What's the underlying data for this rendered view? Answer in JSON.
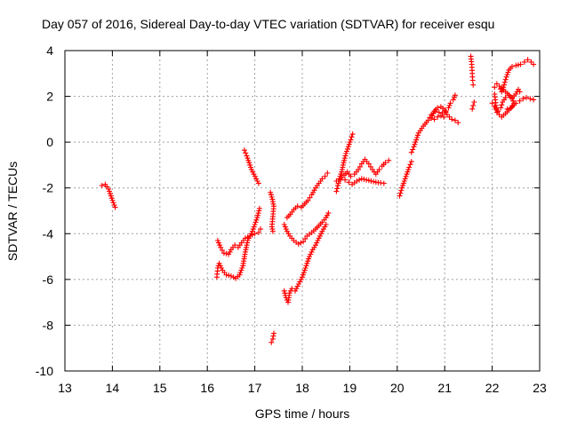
{
  "chart_data": {
    "type": "scatter",
    "title": "Day 057 of 2016, Sidereal Day-to-day VTEC variation (SDTVAR) for receiver esqu",
    "xlabel": "GPS time / hours",
    "ylabel": "SDTVAR / TECUs",
    "xlim": [
      13,
      23
    ],
    "ylim": [
      -10,
      4
    ],
    "x_ticks": [
      "13",
      "14",
      "15",
      "16",
      "17",
      "18",
      "19",
      "20",
      "21",
      "22",
      "23"
    ],
    "y_ticks": [
      "4",
      "2",
      "0",
      "-2",
      "-4",
      "-6",
      "-8",
      "-10"
    ],
    "grid": true,
    "marker": "plus",
    "color": "#ff0000",
    "segments": [
      [
        [
          13.78,
          -1.9
        ],
        [
          13.85,
          -1.85
        ],
        [
          13.92,
          -2.05
        ],
        [
          13.97,
          -2.35
        ],
        [
          14.02,
          -2.65
        ],
        [
          14.06,
          -2.85
        ]
      ],
      [
        [
          16.2,
          -5.9
        ],
        [
          16.22,
          -5.5
        ],
        [
          16.25,
          -5.3
        ],
        [
          16.32,
          -5.6
        ],
        [
          16.4,
          -5.8
        ],
        [
          16.5,
          -5.85
        ],
        [
          16.6,
          -5.95
        ],
        [
          16.68,
          -5.8
        ],
        [
          16.75,
          -5.4
        ],
        [
          16.8,
          -4.8
        ],
        [
          16.85,
          -4.3
        ],
        [
          16.95,
          -3.9
        ],
        [
          17.05,
          -3.3
        ],
        [
          17.1,
          -2.9
        ]
      ],
      [
        [
          16.22,
          -4.3
        ],
        [
          16.28,
          -4.6
        ],
        [
          16.35,
          -4.85
        ],
        [
          16.45,
          -4.9
        ],
        [
          16.5,
          -4.7
        ],
        [
          16.58,
          -4.5
        ],
        [
          16.65,
          -4.6
        ],
        [
          16.72,
          -4.4
        ],
        [
          16.8,
          -4.2
        ],
        [
          16.9,
          -4.1
        ],
        [
          17.0,
          -4.0
        ],
        [
          17.08,
          -3.95
        ],
        [
          17.12,
          -3.8
        ]
      ],
      [
        [
          16.78,
          -0.35
        ],
        [
          16.83,
          -0.6
        ],
        [
          16.88,
          -0.9
        ],
        [
          16.93,
          -1.2
        ],
        [
          16.98,
          -1.4
        ],
        [
          17.03,
          -1.6
        ],
        [
          17.08,
          -1.8
        ]
      ],
      [
        [
          17.33,
          -2.2
        ],
        [
          17.37,
          -2.5
        ],
        [
          17.4,
          -2.8
        ],
        [
          17.36,
          -3.7
        ],
        [
          17.38,
          -3.9
        ]
      ],
      [
        [
          17.35,
          -8.75
        ],
        [
          17.38,
          -8.6
        ],
        [
          17.4,
          -8.35
        ]
      ],
      [
        [
          17.62,
          -3.6
        ],
        [
          17.68,
          -3.9
        ],
        [
          17.74,
          -4.1
        ],
        [
          17.82,
          -4.3
        ],
        [
          17.92,
          -4.45
        ],
        [
          18.02,
          -4.35
        ],
        [
          18.1,
          -4.1
        ],
        [
          18.2,
          -3.95
        ],
        [
          18.28,
          -3.8
        ],
        [
          18.35,
          -3.65
        ],
        [
          18.42,
          -3.5
        ],
        [
          18.5,
          -3.3
        ],
        [
          18.55,
          -3.1
        ]
      ],
      [
        [
          17.62,
          -6.5
        ],
        [
          17.66,
          -6.8
        ],
        [
          17.7,
          -7.0
        ],
        [
          17.73,
          -6.6
        ],
        [
          17.78,
          -6.4
        ],
        [
          17.85,
          -6.5
        ],
        [
          17.9,
          -6.3
        ],
        [
          17.95,
          -6.1
        ],
        [
          18.0,
          -5.9
        ],
        [
          18.05,
          -5.6
        ],
        [
          18.1,
          -5.3
        ],
        [
          18.15,
          -5.0
        ],
        [
          18.22,
          -4.7
        ],
        [
          18.28,
          -4.5
        ],
        [
          18.35,
          -4.2
        ],
        [
          18.42,
          -3.9
        ],
        [
          18.5,
          -3.6
        ]
      ],
      [
        [
          17.68,
          -3.3
        ],
        [
          17.75,
          -3.15
        ],
        [
          17.82,
          -2.95
        ],
        [
          17.9,
          -2.8
        ],
        [
          17.98,
          -2.85
        ],
        [
          18.05,
          -2.7
        ],
        [
          18.12,
          -2.55
        ],
        [
          18.2,
          -2.3
        ],
        [
          18.28,
          -2.0
        ],
        [
          18.35,
          -1.8
        ],
        [
          18.42,
          -1.6
        ],
        [
          18.48,
          -1.5
        ],
        [
          18.53,
          -1.35
        ]
      ],
      [
        [
          18.72,
          -2.15
        ],
        [
          18.75,
          -1.9
        ],
        [
          18.78,
          -1.6
        ],
        [
          18.83,
          -1.3
        ],
        [
          18.87,
          -0.9
        ],
        [
          18.92,
          -0.5
        ],
        [
          18.97,
          -0.2
        ],
        [
          19.02,
          0.1
        ],
        [
          19.06,
          0.35
        ]
      ],
      [
        [
          18.72,
          -1.7
        ],
        [
          18.8,
          -1.65
        ],
        [
          18.88,
          -1.45
        ],
        [
          18.95,
          -1.3
        ],
        [
          19.02,
          -1.5
        ],
        [
          19.1,
          -1.4
        ],
        [
          19.18,
          -1.2
        ],
        [
          19.25,
          -0.95
        ],
        [
          19.32,
          -0.75
        ],
        [
          19.4,
          -0.95
        ],
        [
          19.48,
          -1.2
        ],
        [
          19.55,
          -1.4
        ],
        [
          19.62,
          -1.2
        ],
        [
          19.68,
          -1.05
        ],
        [
          19.75,
          -0.9
        ],
        [
          19.82,
          -0.8
        ]
      ],
      [
        [
          18.9,
          -1.65
        ],
        [
          18.98,
          -1.75
        ],
        [
          19.05,
          -1.85
        ],
        [
          19.15,
          -1.7
        ],
        [
          19.25,
          -1.6
        ],
        [
          19.35,
          -1.65
        ],
        [
          19.45,
          -1.7
        ],
        [
          19.55,
          -1.75
        ],
        [
          19.65,
          -1.78
        ],
        [
          19.72,
          -1.8
        ]
      ],
      [
        [
          20.05,
          -2.35
        ],
        [
          20.1,
          -2.0
        ],
        [
          20.15,
          -1.7
        ],
        [
          20.2,
          -1.4
        ],
        [
          20.25,
          -1.1
        ],
        [
          20.3,
          -0.85
        ]
      ],
      [
        [
          20.3,
          -0.45
        ],
        [
          20.35,
          -0.2
        ],
        [
          20.4,
          0.1
        ],
        [
          20.45,
          0.4
        ],
        [
          20.55,
          0.7
        ],
        [
          20.65,
          0.95
        ],
        [
          20.72,
          1.2
        ],
        [
          20.8,
          1.35
        ],
        [
          20.88,
          1.3
        ],
        [
          20.95,
          1.25
        ],
        [
          21.02,
          1.35
        ],
        [
          21.08,
          1.5
        ],
        [
          21.12,
          1.7
        ],
        [
          21.18,
          1.85
        ],
        [
          21.22,
          2.05
        ]
      ],
      [
        [
          20.72,
          1.05
        ],
        [
          20.78,
          1.35
        ],
        [
          20.85,
          1.5
        ],
        [
          20.92,
          1.55
        ],
        [
          21.0,
          1.4
        ],
        [
          21.05,
          1.2
        ],
        [
          21.1,
          1.1
        ],
        [
          21.15,
          1.0
        ],
        [
          21.22,
          0.95
        ],
        [
          21.28,
          0.85
        ]
      ],
      [
        [
          20.78,
          1.0
        ],
        [
          20.85,
          1.1
        ],
        [
          20.92,
          1.15
        ],
        [
          20.98,
          1.1
        ]
      ],
      [
        [
          21.55,
          3.75
        ],
        [
          21.57,
          3.4
        ],
        [
          21.58,
          3.0
        ],
        [
          21.59,
          2.7
        ],
        [
          21.6,
          2.5
        ]
      ],
      [
        [
          21.58,
          1.45
        ],
        [
          21.6,
          1.6
        ],
        [
          21.62,
          1.75
        ]
      ],
      [
        [
          22.05,
          2.4
        ],
        [
          22.1,
          2.55
        ],
        [
          22.15,
          2.45
        ],
        [
          22.2,
          2.2
        ],
        [
          22.25,
          2.5
        ],
        [
          22.3,
          2.85
        ],
        [
          22.35,
          3.15
        ],
        [
          22.42,
          3.3
        ],
        [
          22.5,
          3.35
        ],
        [
          22.6,
          3.4
        ],
        [
          22.68,
          3.5
        ],
        [
          22.75,
          3.6
        ],
        [
          22.82,
          3.5
        ],
        [
          22.87,
          3.4
        ]
      ],
      [
        [
          22.05,
          2.1
        ],
        [
          22.08,
          1.6
        ],
        [
          22.1,
          1.3
        ],
        [
          22.15,
          1.2
        ],
        [
          22.2,
          1.1
        ],
        [
          22.28,
          1.25
        ],
        [
          22.35,
          1.4
        ],
        [
          22.42,
          1.55
        ],
        [
          22.5,
          1.7
        ],
        [
          22.58,
          1.8
        ],
        [
          22.65,
          1.9
        ],
        [
          22.72,
          1.95
        ],
        [
          22.8,
          1.9
        ],
        [
          22.87,
          1.85
        ]
      ],
      [
        [
          22.0,
          1.7
        ],
        [
          22.05,
          1.55
        ],
        [
          22.12,
          1.35
        ],
        [
          22.18,
          1.5
        ],
        [
          22.22,
          1.75
        ],
        [
          22.28,
          1.95
        ],
        [
          22.35,
          2.05
        ],
        [
          22.42,
          1.9
        ],
        [
          22.46,
          1.7
        ],
        [
          22.4,
          1.5
        ],
        [
          22.32,
          1.45
        ]
      ],
      [
        [
          22.2,
          2.35
        ],
        [
          22.28,
          2.2
        ],
        [
          22.36,
          2.05
        ],
        [
          22.42,
          1.95
        ],
        [
          22.5,
          2.1
        ],
        [
          22.55,
          2.3
        ],
        [
          22.58,
          2.2
        ]
      ]
    ]
  }
}
